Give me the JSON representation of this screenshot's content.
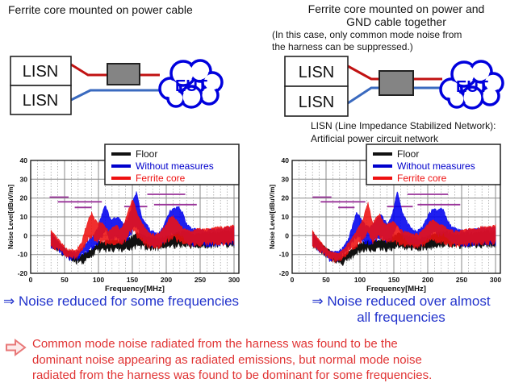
{
  "left_section": {
    "title": "Ferrite core mounted on power cable",
    "diagram": {
      "lisn_top": "LISN",
      "lisn_bottom": "LISN",
      "eut": "EUT"
    },
    "conclusion": "⇒ Noise reduced for some frequencies"
  },
  "right_section": {
    "title": "Ferrite core mounted on power and\nGND cable together",
    "note": "(In this case, only common mode noise from\nthe harness can be suppressed.)",
    "diagram": {
      "lisn_top": "LISN",
      "lisn_bottom": "LISN",
      "eut": "EUT"
    },
    "lisn_caption": "LISN (Line Impedance Stabilized Network):\nArtificial power circuit network",
    "conclusion": "⇒ Noise reduced over almost\nall frequencies"
  },
  "footer": {
    "text": "Common mode noise radiated from the harness was found to be the\ndominant noise appearing as radiated emissions, but normal mode noise\nradiated from the harness was found to be dominant for some frequencies."
  },
  "colors": {
    "conclusion_blue": "#2233cc",
    "footer_red": "#e03333",
    "wire_power": "#c11212",
    "wire_gnd": "#3a6abf",
    "ferrite_fill": "#848484",
    "cloud_blue": "#0000dd",
    "marker_purple": "#993399"
  },
  "chart_data": [
    {
      "type": "line",
      "title": "",
      "xlabel": "Frequency[MHz]",
      "ylabel": "Noise Level[dBuV/m]",
      "xlim": [
        0,
        310
      ],
      "ylim": [
        -20,
        40
      ],
      "xticks": [
        0,
        50,
        100,
        150,
        200,
        250,
        300
      ],
      "yticks": [
        -20,
        -10,
        0,
        10,
        20,
        30,
        40
      ],
      "grid": true,
      "legend_position": "top-right",
      "legend": [
        {
          "label": "Floor",
          "color": "#111111"
        },
        {
          "label": "Without measures",
          "color": "#0000cc"
        },
        {
          "label": "Ferrite core",
          "color": "#ee1111"
        }
      ],
      "marker_segments": [
        {
          "x1": 28,
          "x2": 56,
          "y": 20.5
        },
        {
          "x1": 40,
          "x2": 105,
          "y": 18
        },
        {
          "x1": 65,
          "x2": 90,
          "y": 15
        },
        {
          "x1": 138,
          "x2": 172,
          "y": 15.5
        },
        {
          "x1": 172,
          "x2": 228,
          "y": 22
        },
        {
          "x1": 182,
          "x2": 245,
          "y": 16.5
        }
      ],
      "series": [
        {
          "name": "Floor",
          "color": "#111111",
          "opacity": 1.0,
          "envelope": [
            [
              30,
              3
            ],
            [
              38,
              -2
            ],
            [
              50,
              -6
            ],
            [
              62,
              -9
            ],
            [
              75,
              -10
            ],
            [
              88,
              -7
            ],
            [
              100,
              -3
            ],
            [
              115,
              -2
            ],
            [
              130,
              -2
            ],
            [
              145,
              -1
            ],
            [
              158,
              2
            ],
            [
              170,
              0
            ],
            [
              185,
              -1
            ],
            [
              200,
              0
            ],
            [
              215,
              2
            ],
            [
              228,
              3
            ],
            [
              240,
              1
            ],
            [
              255,
              2
            ],
            [
              270,
              2
            ],
            [
              285,
              3
            ],
            [
              300,
              3
            ]
          ]
        },
        {
          "name": "Without measures",
          "color": "#0000ee",
          "opacity": 0.88,
          "envelope": [
            [
              30,
              2
            ],
            [
              42,
              -3
            ],
            [
              55,
              -8
            ],
            [
              68,
              -8
            ],
            [
              78,
              -5
            ],
            [
              88,
              -1
            ],
            [
              95,
              2
            ],
            [
              100,
              6
            ],
            [
              105,
              12
            ],
            [
              110,
              17
            ],
            [
              114,
              13
            ],
            [
              118,
              9
            ],
            [
              124,
              10
            ],
            [
              130,
              10
            ],
            [
              136,
              7
            ],
            [
              142,
              9
            ],
            [
              148,
              14
            ],
            [
              153,
              22
            ],
            [
              156,
              24
            ],
            [
              160,
              17
            ],
            [
              164,
              10
            ],
            [
              170,
              7
            ],
            [
              176,
              4
            ],
            [
              184,
              2
            ],
            [
              192,
              3
            ],
            [
              200,
              9
            ],
            [
              206,
              14
            ],
            [
              212,
              15
            ],
            [
              218,
              16
            ],
            [
              224,
              13
            ],
            [
              230,
              7
            ],
            [
              238,
              4
            ],
            [
              248,
              4
            ],
            [
              258,
              3
            ],
            [
              268,
              4
            ],
            [
              278,
              4
            ],
            [
              288,
              5
            ],
            [
              300,
              5
            ]
          ]
        },
        {
          "name": "Ferrite core",
          "color": "#ee1111",
          "opacity": 0.88,
          "envelope": [
            [
              30,
              3
            ],
            [
              42,
              -2
            ],
            [
              55,
              -7
            ],
            [
              66,
              -7
            ],
            [
              74,
              -4
            ],
            [
              80,
              3
            ],
            [
              86,
              10
            ],
            [
              90,
              13
            ],
            [
              94,
              10
            ],
            [
              99,
              7
            ],
            [
              104,
              8
            ],
            [
              110,
              5
            ],
            [
              116,
              3
            ],
            [
              122,
              5
            ],
            [
              128,
              6
            ],
            [
              134,
              4
            ],
            [
              140,
              9
            ],
            [
              145,
              15
            ],
            [
              150,
              20
            ],
            [
              154,
              16
            ],
            [
              158,
              11
            ],
            [
              163,
              8
            ],
            [
              168,
              5
            ],
            [
              175,
              2
            ],
            [
              183,
              1
            ],
            [
              191,
              2
            ],
            [
              199,
              6
            ],
            [
              205,
              10
            ],
            [
              210,
              11
            ],
            [
              215,
              9
            ],
            [
              220,
              6
            ],
            [
              227,
              4
            ],
            [
              236,
              3
            ],
            [
              246,
              4
            ],
            [
              256,
              4
            ],
            [
              266,
              4
            ],
            [
              276,
              5
            ],
            [
              286,
              5
            ],
            [
              300,
              6
            ]
          ]
        }
      ]
    },
    {
      "type": "line",
      "title": "",
      "xlabel": "Frequency[MHz]",
      "ylabel": "Noise Level[dBuV/m]",
      "xlim": [
        0,
        310
      ],
      "ylim": [
        -20,
        40
      ],
      "xticks": [
        0,
        50,
        100,
        150,
        200,
        250,
        300
      ],
      "yticks": [
        -20,
        -10,
        0,
        10,
        20,
        30,
        40
      ],
      "grid": true,
      "legend_position": "top-right",
      "legend": [
        {
          "label": "Floor",
          "color": "#111111"
        },
        {
          "label": "Without measures",
          "color": "#0000cc"
        },
        {
          "label": "Ferrite core",
          "color": "#ee1111"
        }
      ],
      "marker_segments": [
        {
          "x1": 30,
          "x2": 58,
          "y": 20.5
        },
        {
          "x1": 42,
          "x2": 108,
          "y": 18
        },
        {
          "x1": 68,
          "x2": 92,
          "y": 15
        },
        {
          "x1": 140,
          "x2": 178,
          "y": 15.5
        },
        {
          "x1": 170,
          "x2": 230,
          "y": 22
        },
        {
          "x1": 185,
          "x2": 248,
          "y": 16.5
        }
      ],
      "series": [
        {
          "name": "Floor",
          "color": "#111111",
          "opacity": 1.0,
          "envelope": [
            [
              30,
              3
            ],
            [
              38,
              -2
            ],
            [
              50,
              -6
            ],
            [
              62,
              -9
            ],
            [
              75,
              -10
            ],
            [
              88,
              -7
            ],
            [
              100,
              -3
            ],
            [
              115,
              -2
            ],
            [
              130,
              -2
            ],
            [
              145,
              -1
            ],
            [
              158,
              2
            ],
            [
              170,
              0
            ],
            [
              185,
              -1
            ],
            [
              200,
              0
            ],
            [
              215,
              2
            ],
            [
              228,
              3
            ],
            [
              240,
              1
            ],
            [
              255,
              2
            ],
            [
              270,
              2
            ],
            [
              285,
              3
            ],
            [
              300,
              3
            ]
          ]
        },
        {
          "name": "Without measures",
          "color": "#0000ee",
          "opacity": 0.88,
          "envelope": [
            [
              30,
              2
            ],
            [
              42,
              -4
            ],
            [
              55,
              -8
            ],
            [
              68,
              -8
            ],
            [
              78,
              -4
            ],
            [
              84,
              0
            ],
            [
              90,
              7
            ],
            [
              95,
              13
            ],
            [
              99,
              11
            ],
            [
              104,
              8
            ],
            [
              109,
              6
            ],
            [
              114,
              5
            ],
            [
              120,
              7
            ],
            [
              126,
              10
            ],
            [
              131,
              12
            ],
            [
              136,
              9
            ],
            [
              141,
              7
            ],
            [
              146,
              10
            ],
            [
              151,
              17
            ],
            [
              155,
              24
            ],
            [
              159,
              19
            ],
            [
              164,
              12
            ],
            [
              169,
              8
            ],
            [
              175,
              5
            ],
            [
              182,
              3
            ],
            [
              189,
              4
            ],
            [
              195,
              7
            ],
            [
              200,
              11
            ],
            [
              205,
              14
            ],
            [
              210,
              15
            ],
            [
              214,
              14
            ],
            [
              219,
              15
            ],
            [
              224,
              14
            ],
            [
              229,
              9
            ],
            [
              236,
              5
            ],
            [
              244,
              4
            ],
            [
              254,
              3
            ],
            [
              264,
              4
            ],
            [
              274,
              4
            ],
            [
              284,
              5
            ],
            [
              300,
              5
            ]
          ]
        },
        {
          "name": "Ferrite core",
          "color": "#ee1111",
          "opacity": 0.88,
          "envelope": [
            [
              30,
              3
            ],
            [
              42,
              -3
            ],
            [
              55,
              -8
            ],
            [
              68,
              -9
            ],
            [
              78,
              -6
            ],
            [
              84,
              -3
            ],
            [
              90,
              0
            ],
            [
              95,
              3
            ],
            [
              100,
              6
            ],
            [
              105,
              10
            ],
            [
              109,
              15
            ],
            [
              112,
              18
            ],
            [
              115,
              13
            ],
            [
              119,
              7
            ],
            [
              124,
              10
            ],
            [
              129,
              12
            ],
            [
              134,
              8
            ],
            [
              139,
              6
            ],
            [
              144,
              7
            ],
            [
              149,
              8
            ],
            [
              154,
              6
            ],
            [
              159,
              4
            ],
            [
              165,
              3
            ],
            [
              172,
              2
            ],
            [
              180,
              1
            ],
            [
              188,
              2
            ],
            [
              195,
              4
            ],
            [
              201,
              7
            ],
            [
              207,
              9
            ],
            [
              212,
              8
            ],
            [
              217,
              6
            ],
            [
              223,
              6
            ],
            [
              229,
              4
            ],
            [
              238,
              3
            ],
            [
              248,
              3
            ],
            [
              258,
              4
            ],
            [
              268,
              4
            ],
            [
              278,
              5
            ],
            [
              288,
              5
            ],
            [
              300,
              6
            ]
          ]
        }
      ]
    }
  ]
}
